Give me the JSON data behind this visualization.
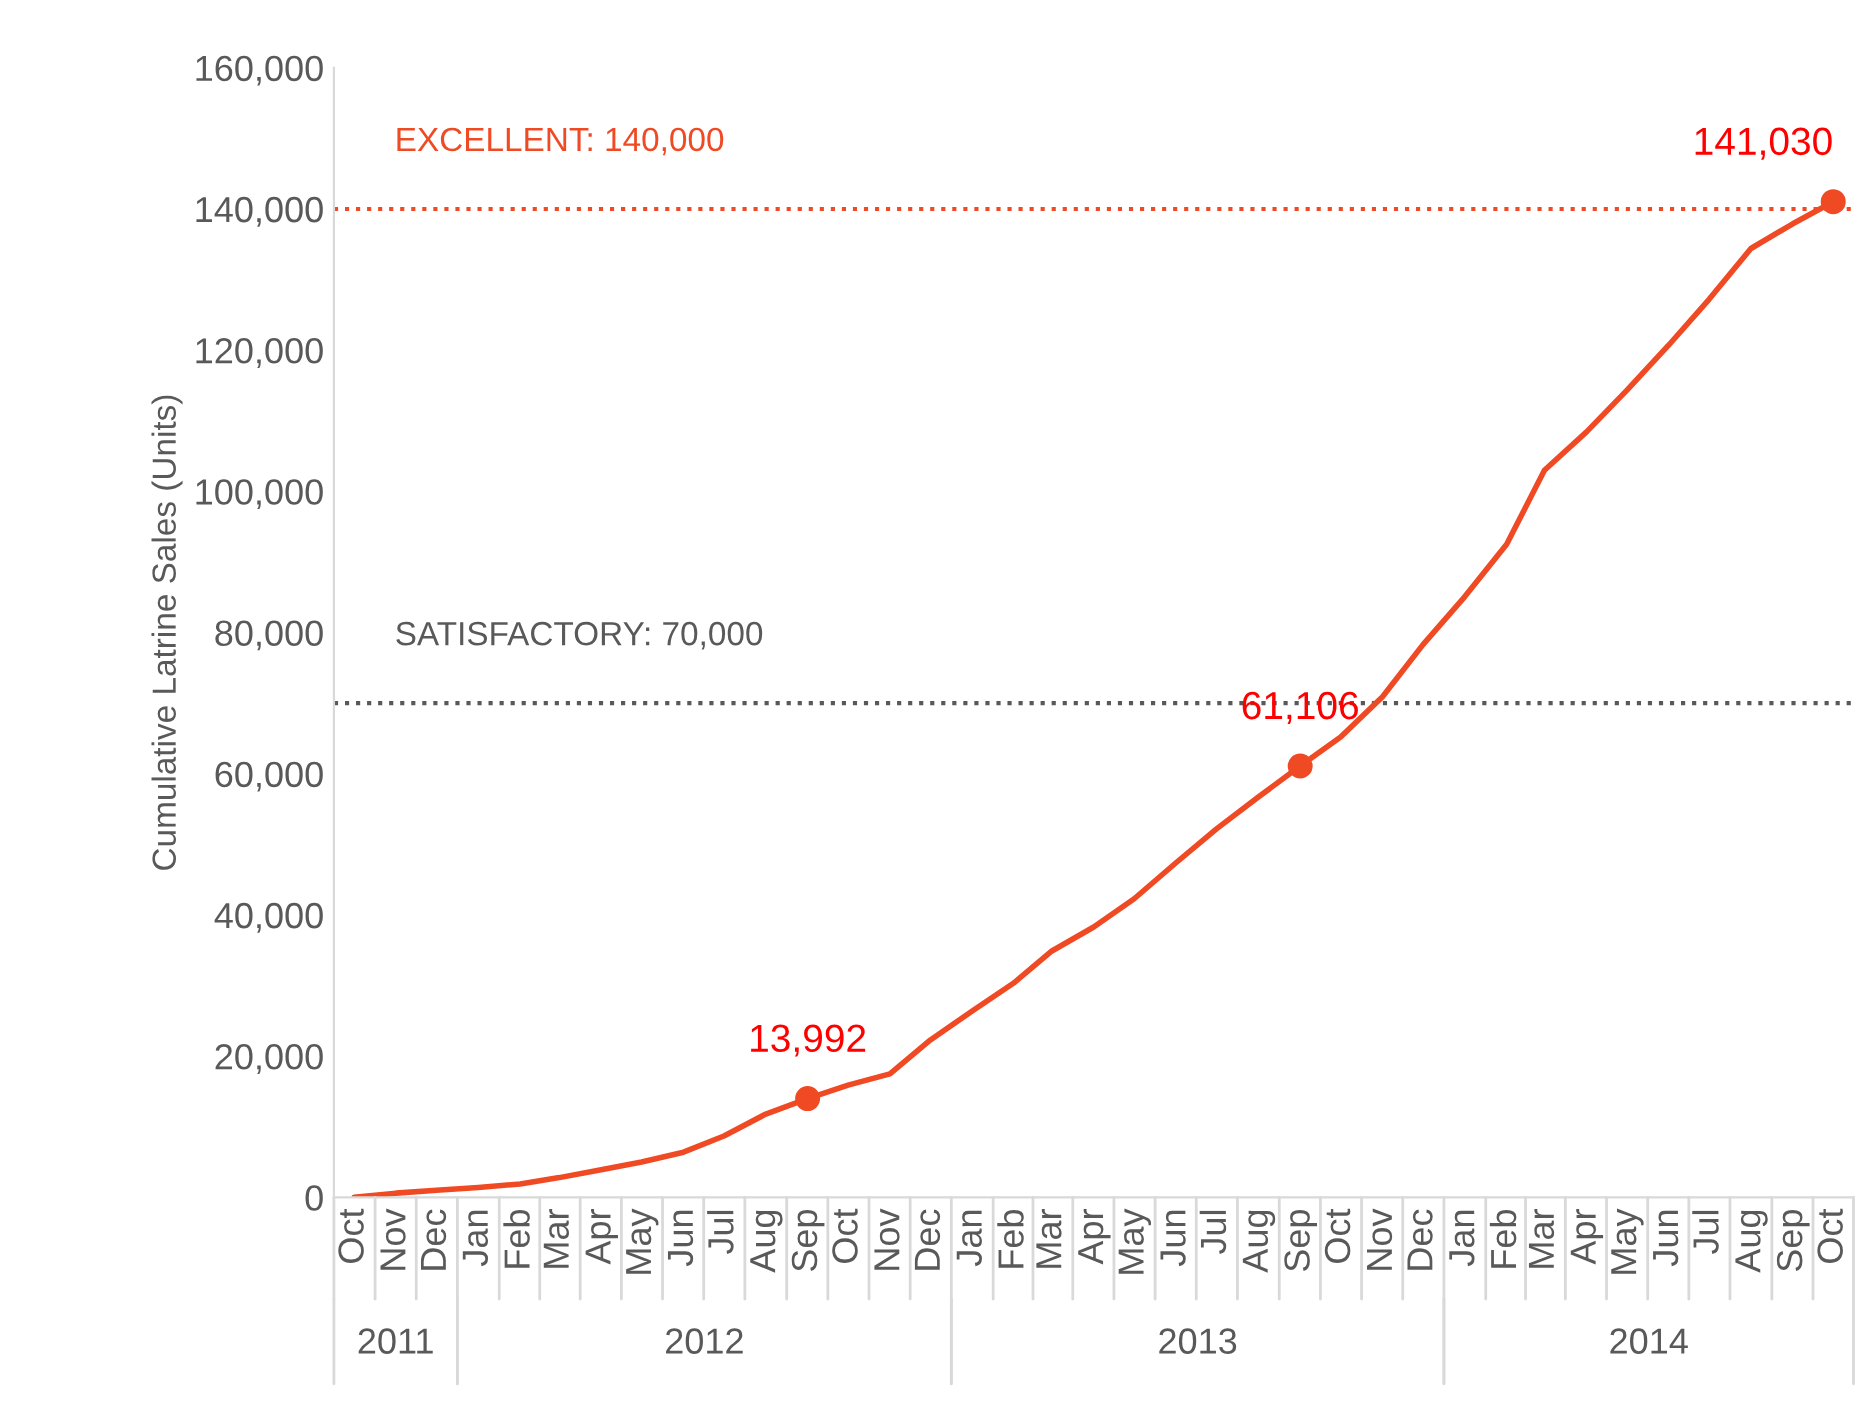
{
  "chart_data": {
    "type": "line",
    "ylabel": "Cumulative Latrine Sales (Units)",
    "x": [
      "2011-10",
      "2011-11",
      "2011-12",
      "2012-01",
      "2012-02",
      "2012-03",
      "2012-04",
      "2012-05",
      "2012-06",
      "2012-07",
      "2012-08",
      "2012-09",
      "2012-10",
      "2012-11",
      "2012-12",
      "2013-01",
      "2013-02",
      "2013-03",
      "2013-04",
      "2013-05",
      "2013-06",
      "2013-07",
      "2013-08",
      "2013-09",
      "2013-10",
      "2013-11",
      "2013-12",
      "2014-01",
      "2014-02",
      "2014-03",
      "2014-04",
      "2014-05",
      "2014-06",
      "2014-07",
      "2014-08",
      "2014-09",
      "2014-10"
    ],
    "series": [
      {
        "color": "#f04a24",
        "values": [
          0,
          600,
          1000,
          1400,
          1900,
          2800,
          3900,
          5000,
          6400,
          8700,
          11800,
          13992,
          15900,
          17500,
          22300,
          26400,
          30400,
          34900,
          38300,
          42300,
          47400,
          52200,
          56700,
          61106,
          65200,
          70900,
          78300,
          85100,
          92500,
          103000,
          108400,
          114300,
          120700,
          127200,
          134400,
          137900,
          141030
        ],
        "value_labels": [
          null,
          null,
          null,
          null,
          null,
          null,
          null,
          null,
          null,
          null,
          null,
          "13,992",
          null,
          null,
          null,
          null,
          null,
          null,
          null,
          null,
          null,
          null,
          null,
          "61,106",
          null,
          null,
          null,
          null,
          null,
          null,
          null,
          null,
          null,
          null,
          null,
          null,
          "141,030"
        ]
      }
    ],
    "xlim": [
      "2011-09-16",
      "2014-10-16"
    ],
    "xticks": [
      {
        "value": "2011-10",
        "label": "Oct"
      },
      {
        "value": "2011-11",
        "label": "Nov"
      },
      {
        "value": "2011-12",
        "label": "Dec"
      },
      {
        "value": "2012-01",
        "label": "Jan"
      },
      {
        "value": "2012-02",
        "label": "Feb"
      },
      {
        "value": "2012-03",
        "label": "Mar"
      },
      {
        "value": "2012-04",
        "label": "Apr"
      },
      {
        "value": "2012-05",
        "label": "May"
      },
      {
        "value": "2012-06",
        "label": "Jun"
      },
      {
        "value": "2012-07",
        "label": "Jul"
      },
      {
        "value": "2012-08",
        "label": "Aug"
      },
      {
        "value": "2012-09",
        "label": "Sep"
      },
      {
        "value": "2012-10",
        "label": "Oct"
      },
      {
        "value": "2012-11",
        "label": "Nov"
      },
      {
        "value": "2012-12",
        "label": "Dec"
      },
      {
        "value": "2013-01",
        "label": "Jan"
      },
      {
        "value": "2013-02",
        "label": "Feb"
      },
      {
        "value": "2013-03",
        "label": "Mar"
      },
      {
        "value": "2013-04",
        "label": "Apr"
      },
      {
        "value": "2013-05",
        "label": "May"
      },
      {
        "value": "2013-06",
        "label": "Jun"
      },
      {
        "value": "2013-07",
        "label": "Jul"
      },
      {
        "value": "2013-08",
        "label": "Aug"
      },
      {
        "value": "2013-09",
        "label": "Sep"
      },
      {
        "value": "2013-10",
        "label": "Oct"
      },
      {
        "value": "2013-11",
        "label": "Nov"
      },
      {
        "value": "2013-12",
        "label": "Dec"
      },
      {
        "value": "2014-01",
        "label": "Jan"
      },
      {
        "value": "2014-02",
        "label": "Feb"
      },
      {
        "value": "2014-03",
        "label": "Mar"
      },
      {
        "value": "2014-04",
        "label": "Apr"
      },
      {
        "value": "2014-05",
        "label": "May"
      },
      {
        "value": "2014-06",
        "label": "Jun"
      },
      {
        "value": "2014-07",
        "label": "Jul"
      },
      {
        "value": "2014-08",
        "label": "Aug"
      },
      {
        "value": "2014-09",
        "label": "Sep"
      },
      {
        "value": "2014-10",
        "label": "Oct"
      }
    ],
    "annotations": [
      "2011",
      "2012",
      "2013",
      "2014"
    ],
    "ylim": [
      0,
      160000
    ],
    "yticks": [
      {
        "value": 0,
        "label": "0"
      },
      {
        "value": 20000,
        "label": "20,000"
      },
      {
        "value": 40000,
        "label": "40,000"
      },
      {
        "value": 60000,
        "label": "60,000"
      },
      {
        "value": 80000,
        "label": "80,000"
      },
      {
        "value": 100000,
        "label": "100,000"
      },
      {
        "value": 120000,
        "label": "120,000"
      },
      {
        "value": 140000,
        "label": "140,000"
      },
      {
        "value": 160000,
        "label": "160,000"
      }
    ],
    "ref_lines": [
      {
        "axis": "y",
        "value": 70000,
        "label": "SATISFACTORY: 70,000",
        "color": "#595959",
        "line_style": "dotted"
      },
      {
        "axis": "y",
        "value": 140000,
        "label": "EXCELLENT: 140,000",
        "color": "#f04a24",
        "line_style": "dotted"
      }
    ],
    "grid": false,
    "legend": false
  }
}
